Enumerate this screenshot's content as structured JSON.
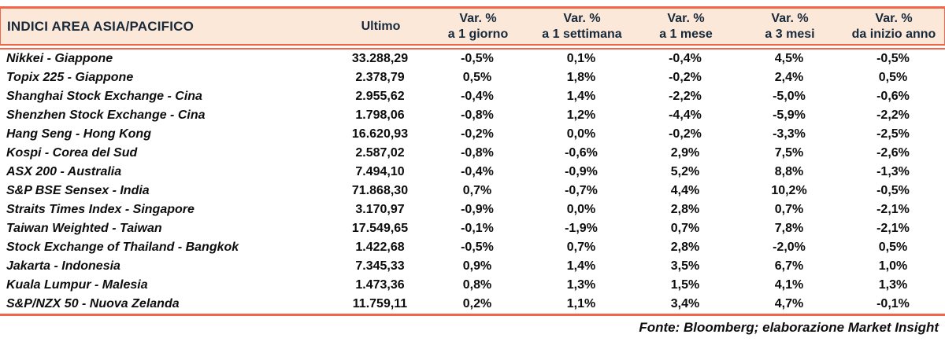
{
  "colors": {
    "accent": "#f0664b",
    "header_bg": "#fbe8d8",
    "header_text": "#17293a",
    "body_text": "#0d0d0d"
  },
  "table": {
    "headers": {
      "name": "INDICI AREA ASIA/PACIFICO",
      "ultimo": "Ultimo",
      "var_cols": [
        {
          "line1": "Var. %",
          "line2": "a 1 giorno"
        },
        {
          "line1": "Var. %",
          "line2": "a 1 settimana"
        },
        {
          "line1": "Var. %",
          "line2": "a 1 mese"
        },
        {
          "line1": "Var. %",
          "line2": "a 3 mesi"
        },
        {
          "line1": "Var. %",
          "line2": "da inizio anno"
        }
      ]
    },
    "rows": [
      {
        "name": "Nikkei - Giappone",
        "ultimo": "33.288,29",
        "d1": "-0,5%",
        "w1": "0,1%",
        "m1": "-0,4%",
        "m3": "4,5%",
        "ytd": "-0,5%"
      },
      {
        "name": "Topix 225 - Giappone",
        "ultimo": "2.378,79",
        "d1": "0,5%",
        "w1": "1,8%",
        "m1": "-0,2%",
        "m3": "2,4%",
        "ytd": "0,5%"
      },
      {
        "name": "Shanghai Stock Exchange - Cina",
        "ultimo": "2.955,62",
        "d1": "-0,4%",
        "w1": "1,4%",
        "m1": "-2,2%",
        "m3": "-5,0%",
        "ytd": "-0,6%"
      },
      {
        "name": "Shenzhen Stock Exchange - Cina",
        "ultimo": "1.798,06",
        "d1": "-0,8%",
        "w1": "1,2%",
        "m1": "-4,4%",
        "m3": "-5,9%",
        "ytd": "-2,2%"
      },
      {
        "name": "Hang Seng - Hong Kong",
        "ultimo": "16.620,93",
        "d1": "-0,2%",
        "w1": "0,0%",
        "m1": "-0,2%",
        "m3": "-3,3%",
        "ytd": "-2,5%"
      },
      {
        "name": "Kospi - Corea del Sud",
        "ultimo": "2.587,02",
        "d1": "-0,8%",
        "w1": "-0,6%",
        "m1": "2,9%",
        "m3": "7,5%",
        "ytd": "-2,6%"
      },
      {
        "name": "ASX 200 - Australia",
        "ultimo": "7.494,10",
        "d1": "-0,4%",
        "w1": "-0,9%",
        "m1": "5,2%",
        "m3": "8,8%",
        "ytd": "-1,3%"
      },
      {
        "name": "S&P BSE Sensex - India",
        "ultimo": "71.868,30",
        "d1": "0,7%",
        "w1": "-0,7%",
        "m1": "4,4%",
        "m3": "10,2%",
        "ytd": "-0,5%"
      },
      {
        "name": "Straits Times Index - Singapore",
        "ultimo": "3.170,97",
        "d1": "-0,9%",
        "w1": "0,0%",
        "m1": "2,8%",
        "m3": "0,7%",
        "ytd": "-2,1%"
      },
      {
        "name": "Taiwan Weighted - Taiwan",
        "ultimo": "17.549,65",
        "d1": "-0,1%",
        "w1": "-1,9%",
        "m1": "0,7%",
        "m3": "7,8%",
        "ytd": "-2,1%"
      },
      {
        "name": "Stock Exchange of Thailand - Bangkok",
        "ultimo": "1.422,68",
        "d1": "-0,5%",
        "w1": "0,7%",
        "m1": "2,8%",
        "m3": "-2,0%",
        "ytd": "0,5%"
      },
      {
        "name": "Jakarta - Indonesia",
        "ultimo": "7.345,33",
        "d1": "0,9%",
        "w1": "1,4%",
        "m1": "3,5%",
        "m3": "6,7%",
        "ytd": "1,0%"
      },
      {
        "name": "Kuala Lumpur - Malesia",
        "ultimo": "1.473,36",
        "d1": "0,8%",
        "w1": "1,3%",
        "m1": "1,5%",
        "m3": "4,1%",
        "ytd": "1,3%"
      },
      {
        "name": "S&P/NZX 50 - Nuova Zelanda",
        "ultimo": "11.759,11",
        "d1": "0,2%",
        "w1": "1,1%",
        "m1": "3,4%",
        "m3": "4,7%",
        "ytd": "-0,1%"
      }
    ]
  },
  "footer": {
    "source": "Fonte: Bloomberg; elaborazione Market Insight"
  }
}
